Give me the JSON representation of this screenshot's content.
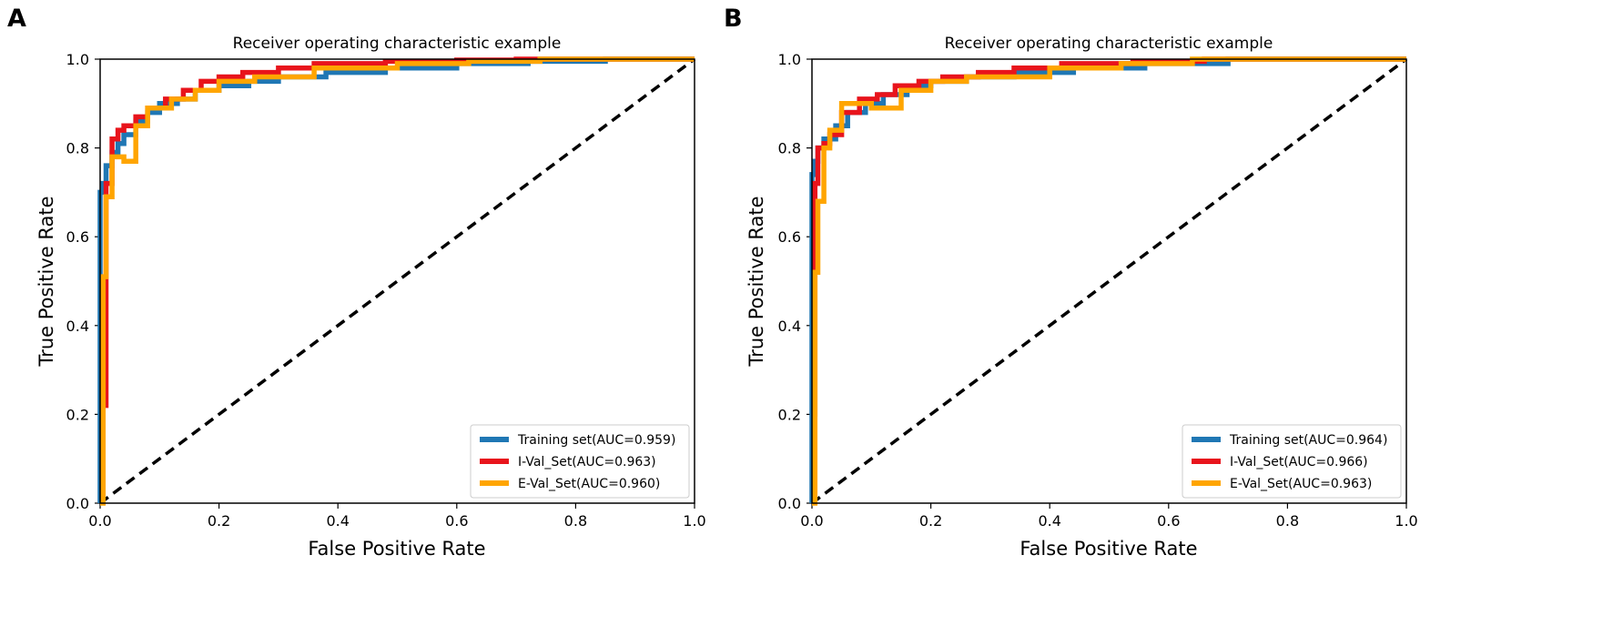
{
  "chart_data": [
    {
      "type": "line",
      "panel": "A",
      "title": "Receiver operating characteristic example",
      "xlabel": "False Positive Rate",
      "ylabel": "True Positive Rate",
      "xlim": [
        0.0,
        1.0
      ],
      "ylim": [
        0.0,
        1.0
      ],
      "xticks": [
        "0.0",
        "0.2",
        "0.4",
        "0.6",
        "0.8",
        "1.0"
      ],
      "yticks": [
        "0.0",
        "0.2",
        "0.4",
        "0.6",
        "0.8",
        "1.0"
      ],
      "grid": false,
      "legend_position": "bottom-right",
      "diagonal": {
        "x": [
          0,
          1
        ],
        "y": [
          0,
          1
        ],
        "style": "dashed",
        "color": "#000000"
      },
      "series": [
        {
          "name": "Training set(AUC=0.959)",
          "color": "#1f77b4",
          "x": [
            0,
            0,
            0.005,
            0.005,
            0.01,
            0.01,
            0.02,
            0.02,
            0.03,
            0.03,
            0.04,
            0.04,
            0.06,
            0.06,
            0.08,
            0.08,
            0.1,
            0.1,
            0.13,
            0.13,
            0.16,
            0.16,
            0.2,
            0.2,
            0.25,
            0.25,
            0.3,
            0.3,
            0.38,
            0.38,
            0.48,
            0.48,
            0.6,
            0.6,
            0.72,
            0.72,
            0.85,
            0.85,
            1.0
          ],
          "y": [
            0,
            0.7,
            0.7,
            0.72,
            0.72,
            0.76,
            0.76,
            0.79,
            0.79,
            0.81,
            0.81,
            0.83,
            0.83,
            0.86,
            0.86,
            0.88,
            0.88,
            0.9,
            0.9,
            0.91,
            0.91,
            0.93,
            0.93,
            0.94,
            0.94,
            0.95,
            0.95,
            0.96,
            0.96,
            0.97,
            0.97,
            0.98,
            0.98,
            0.99,
            0.99,
            0.995,
            0.995,
            1.0,
            1.0
          ]
        },
        {
          "name": "I-Val_Set(AUC=0.963)",
          "color": "#e8141c",
          "x": [
            0,
            0.01,
            0.01,
            0.02,
            0.02,
            0.03,
            0.03,
            0.04,
            0.04,
            0.06,
            0.06,
            0.08,
            0.08,
            0.11,
            0.11,
            0.14,
            0.14,
            0.17,
            0.17,
            0.2,
            0.2,
            0.24,
            0.24,
            0.3,
            0.3,
            0.36,
            0.36,
            0.48,
            0.48,
            0.6,
            0.6,
            0.7,
            0.7,
            1.0
          ],
          "y": [
            0.22,
            0.22,
            0.72,
            0.72,
            0.82,
            0.82,
            0.84,
            0.84,
            0.85,
            0.85,
            0.87,
            0.87,
            0.89,
            0.89,
            0.91,
            0.91,
            0.93,
            0.93,
            0.95,
            0.95,
            0.96,
            0.96,
            0.97,
            0.97,
            0.98,
            0.98,
            0.99,
            0.99,
            0.995,
            0.995,
            0.998,
            0.998,
            1.0,
            1.0
          ]
        },
        {
          "name": "E-Val_Set(AUC=0.960)",
          "color": "#ffa500",
          "x": [
            0,
            0.005,
            0.005,
            0.01,
            0.01,
            0.02,
            0.02,
            0.04,
            0.04,
            0.06,
            0.06,
            0.08,
            0.08,
            0.12,
            0.12,
            0.16,
            0.16,
            0.2,
            0.2,
            0.26,
            0.26,
            0.36,
            0.36,
            0.5,
            0.5,
            0.62,
            0.62,
            0.74,
            0.74,
            1.0
          ],
          "y": [
            0,
            0,
            0.51,
            0.51,
            0.69,
            0.69,
            0.78,
            0.78,
            0.77,
            0.77,
            0.85,
            0.85,
            0.89,
            0.89,
            0.91,
            0.91,
            0.93,
            0.93,
            0.95,
            0.95,
            0.96,
            0.96,
            0.98,
            0.98,
            0.99,
            0.99,
            0.995,
            0.995,
            1.0,
            1.0
          ]
        }
      ]
    },
    {
      "type": "line",
      "panel": "B",
      "title": "Receiver operating characteristic example",
      "xlabel": "False Positive Rate",
      "ylabel": "True Positive Rate",
      "xlim": [
        0.0,
        1.0
      ],
      "ylim": [
        0.0,
        1.0
      ],
      "xticks": [
        "0.0",
        "0.2",
        "0.4",
        "0.6",
        "0.8",
        "1.0"
      ],
      "yticks": [
        "0.0",
        "0.2",
        "0.4",
        "0.6",
        "0.8",
        "1.0"
      ],
      "grid": false,
      "legend_position": "bottom-right",
      "diagonal": {
        "x": [
          0,
          1
        ],
        "y": [
          0,
          1
        ],
        "style": "dashed",
        "color": "#000000"
      },
      "series": [
        {
          "name": "Training set(AUC=0.964)",
          "color": "#1f77b4",
          "x": [
            0,
            0,
            0.005,
            0.005,
            0.01,
            0.01,
            0.02,
            0.02,
            0.04,
            0.04,
            0.06,
            0.06,
            0.09,
            0.09,
            0.12,
            0.12,
            0.16,
            0.16,
            0.2,
            0.2,
            0.26,
            0.26,
            0.34,
            0.34,
            0.44,
            0.44,
            0.56,
            0.56,
            0.7,
            0.7,
            1.0
          ],
          "y": [
            0,
            0.74,
            0.74,
            0.77,
            0.77,
            0.8,
            0.8,
            0.82,
            0.82,
            0.85,
            0.85,
            0.88,
            0.88,
            0.9,
            0.9,
            0.92,
            0.92,
            0.94,
            0.94,
            0.95,
            0.95,
            0.96,
            0.96,
            0.97,
            0.97,
            0.98,
            0.98,
            0.99,
            0.99,
            1.0,
            1.0
          ]
        },
        {
          "name": "I-Val_Set(AUC=0.966)",
          "color": "#e8141c",
          "x": [
            0,
            0.005,
            0.005,
            0.01,
            0.01,
            0.02,
            0.02,
            0.03,
            0.03,
            0.05,
            0.05,
            0.08,
            0.08,
            0.11,
            0.11,
            0.14,
            0.14,
            0.18,
            0.18,
            0.22,
            0.22,
            0.28,
            0.28,
            0.34,
            0.34,
            0.42,
            0.42,
            0.54,
            0.54,
            0.66,
            0.66,
            1.0
          ],
          "y": [
            0.2,
            0.2,
            0.72,
            0.72,
            0.8,
            0.8,
            0.81,
            0.81,
            0.83,
            0.83,
            0.88,
            0.88,
            0.91,
            0.91,
            0.92,
            0.92,
            0.94,
            0.94,
            0.95,
            0.95,
            0.96,
            0.96,
            0.97,
            0.97,
            0.98,
            0.98,
            0.99,
            0.99,
            0.995,
            0.995,
            1.0,
            1.0
          ]
        },
        {
          "name": "E-Val_Set(AUC=0.963)",
          "color": "#ffa500",
          "x": [
            0,
            0.005,
            0.005,
            0.01,
            0.01,
            0.02,
            0.02,
            0.03,
            0.03,
            0.05,
            0.05,
            0.1,
            0.1,
            0.15,
            0.15,
            0.2,
            0.2,
            0.26,
            0.26,
            0.4,
            0.4,
            0.52,
            0.52,
            0.64,
            0.64,
            1.0
          ],
          "y": [
            0,
            0,
            0.52,
            0.52,
            0.68,
            0.68,
            0.8,
            0.8,
            0.84,
            0.84,
            0.9,
            0.9,
            0.89,
            0.89,
            0.93,
            0.93,
            0.95,
            0.95,
            0.96,
            0.96,
            0.98,
            0.98,
            0.99,
            0.99,
            1.0,
            1.0
          ]
        }
      ]
    }
  ]
}
